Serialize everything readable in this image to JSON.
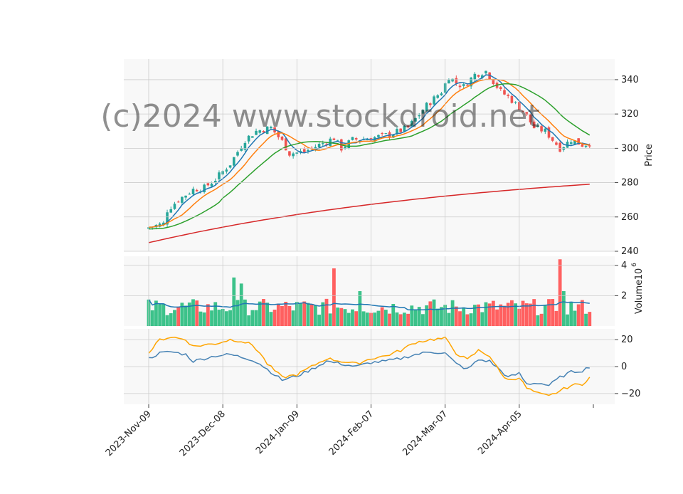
{
  "chart_data": {
    "type": "candlestick",
    "watermark": "(c)2024 www.stockdroid.net",
    "x_tick_labels": [
      "2023-Nov-09",
      "2023-Dec-08",
      "2024-Jan-09",
      "2024-Feb-07",
      "2024-Mar-07",
      "2024-Apr-05"
    ],
    "x_tick_indices": [
      0,
      20,
      40,
      60,
      80,
      100
    ],
    "bar_count": 120,
    "price_panel": {
      "ylabel": "Price",
      "ylim": [
        240,
        352
      ],
      "yticks": [
        240,
        260,
        280,
        300,
        320,
        340
      ],
      "close_keypoints": [
        [
          0,
          254
        ],
        [
          4,
          256
        ],
        [
          5,
          264
        ],
        [
          8,
          270
        ],
        [
          12,
          276
        ],
        [
          15,
          277
        ],
        [
          18,
          282
        ],
        [
          22,
          291
        ],
        [
          26,
          305
        ],
        [
          29,
          310
        ],
        [
          33,
          312
        ],
        [
          36,
          304
        ],
        [
          38,
          297
        ],
        [
          42,
          298
        ],
        [
          46,
          302
        ],
        [
          50,
          306
        ],
        [
          52,
          300
        ],
        [
          55,
          305
        ],
        [
          60,
          306
        ],
        [
          65,
          308
        ],
        [
          70,
          312
        ],
        [
          75,
          325
        ],
        [
          79,
          333
        ],
        [
          81,
          342
        ],
        [
          83,
          338
        ],
        [
          85,
          336
        ],
        [
          88,
          343
        ],
        [
          91,
          345
        ],
        [
          95,
          333
        ],
        [
          97,
          330
        ],
        [
          101,
          322
        ],
        [
          104,
          312
        ],
        [
          107,
          310
        ],
        [
          111,
          300
        ],
        [
          114,
          305
        ],
        [
          117,
          302
        ],
        [
          119,
          303
        ]
      ],
      "ma_series": [
        {
          "color": "#1f77b4",
          "period": 5
        },
        {
          "color": "#ff7f0e",
          "period": 10
        },
        {
          "color": "#2ca02c",
          "period": 20
        },
        {
          "color": "#d62728",
          "period": 60
        }
      ],
      "up_color": "#26a69a",
      "down_color": "#ef5350"
    },
    "volume_panel": {
      "ylabel": "Volume",
      "multiplier_label": "10",
      "multiplier_exponent": "6",
      "ylim": [
        0,
        4.6
      ],
      "yticks": [
        2,
        4
      ],
      "volume_avg_color": "#1f77b4",
      "up_color": "#3cc28a",
      "down_color": "#ff6060",
      "highlights": [
        [
          23,
          3.2
        ],
        [
          25,
          2.8
        ],
        [
          50,
          3.8
        ],
        [
          57,
          2.3
        ],
        [
          111,
          4.4
        ],
        [
          112,
          2.3
        ]
      ]
    },
    "oscillator_panel": {
      "ylim": [
        -28,
        28
      ],
      "yticks": [
        -20,
        0,
        20
      ],
      "series": [
        {
          "color": "#4682b4",
          "keypoints": [
            [
              0,
              6
            ],
            [
              3,
              10
            ],
            [
              6,
              11
            ],
            [
              10,
              9
            ],
            [
              12,
              4
            ],
            [
              15,
              6
            ],
            [
              18,
              8
            ],
            [
              22,
              9
            ],
            [
              25,
              7
            ],
            [
              28,
              5
            ],
            [
              30,
              2
            ],
            [
              32,
              -2
            ],
            [
              36,
              -10
            ],
            [
              40,
              -7
            ],
            [
              44,
              -2
            ],
            [
              48,
              4
            ],
            [
              52,
              2
            ],
            [
              56,
              0
            ],
            [
              60,
              3
            ],
            [
              64,
              4
            ],
            [
              68,
              6
            ],
            [
              72,
              9
            ],
            [
              76,
              11
            ],
            [
              80,
              10
            ],
            [
              83,
              2
            ],
            [
              86,
              -2
            ],
            [
              89,
              5
            ],
            [
              92,
              4
            ],
            [
              95,
              -3
            ],
            [
              97,
              -8
            ],
            [
              100,
              -5
            ],
            [
              102,
              -13
            ],
            [
              105,
              -12
            ],
            [
              108,
              -14
            ],
            [
              111,
              -8
            ],
            [
              114,
              -4
            ],
            [
              117,
              -3
            ],
            [
              119,
              0
            ]
          ]
        },
        {
          "color": "#ffa500",
          "keypoints": [
            [
              0,
              10
            ],
            [
              3,
              20
            ],
            [
              6,
              22
            ],
            [
              10,
              20
            ],
            [
              12,
              15
            ],
            [
              15,
              16
            ],
            [
              18,
              17
            ],
            [
              22,
              20
            ],
            [
              25,
              19
            ],
            [
              28,
              16
            ],
            [
              30,
              10
            ],
            [
              32,
              2
            ],
            [
              36,
              -8
            ],
            [
              40,
              -6
            ],
            [
              44,
              0
            ],
            [
              48,
              6
            ],
            [
              52,
              4
            ],
            [
              56,
              2
            ],
            [
              60,
              6
            ],
            [
              64,
              8
            ],
            [
              68,
              12
            ],
            [
              72,
              18
            ],
            [
              76,
              20
            ],
            [
              80,
              21
            ],
            [
              83,
              10
            ],
            [
              86,
              5
            ],
            [
              89,
              12
            ],
            [
              92,
              8
            ],
            [
              95,
              -5
            ],
            [
              97,
              -10
            ],
            [
              100,
              -8
            ],
            [
              102,
              -16
            ],
            [
              105,
              -20
            ],
            [
              108,
              -22
            ],
            [
              111,
              -18
            ],
            [
              114,
              -14
            ],
            [
              117,
              -13
            ],
            [
              119,
              -8
            ]
          ]
        }
      ]
    }
  }
}
